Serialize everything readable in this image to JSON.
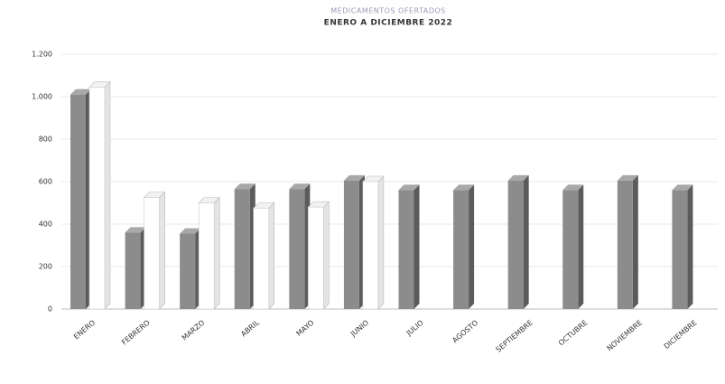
{
  "chart_data": {
    "type": "bar3d",
    "title": "MEDICAMENTOS OFERTADOS",
    "subtitle": "ENERO A DICIEMBRE 2022",
    "categories": [
      "ENERO",
      "FEBRERO",
      "MARZO",
      "ABRIL",
      "MAYO",
      "JUNIO",
      "JULIO",
      "AGOSTO",
      "SEPTIEMBRE",
      "OCTUBRE",
      "NOVIEMBRE",
      "DICIEMBRE"
    ],
    "series": [
      {
        "color": "#8c8c8c",
        "values": [
          1010,
          360,
          355,
          565,
          565,
          605,
          560,
          560,
          605,
          560,
          605,
          560
        ]
      },
      {
        "color": "#ffffff",
        "values": [
          1045,
          525,
          500,
          475,
          480,
          600,
          null,
          null,
          null,
          null,
          null,
          null
        ]
      }
    ],
    "ylim": [
      0,
      1200
    ],
    "yticks": [
      0,
      200,
      400,
      600,
      800,
      {
        "value": 1000,
        "label": "1.000"
      },
      {
        "value": 1200,
        "label": "1.200"
      }
    ],
    "grid": true
  }
}
